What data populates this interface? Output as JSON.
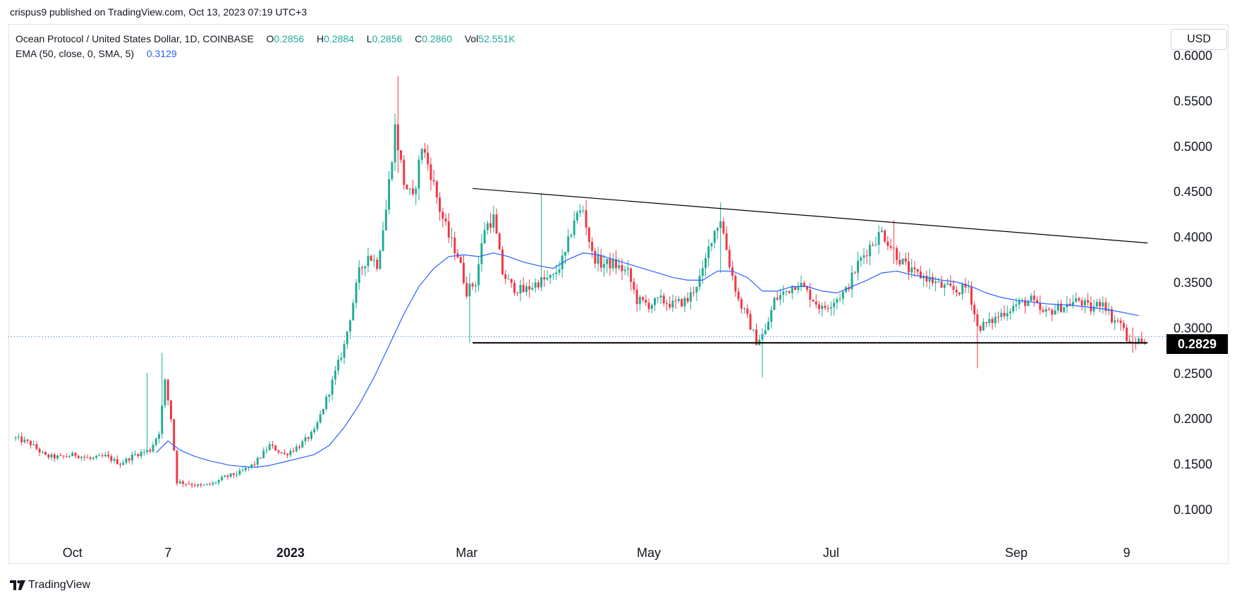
{
  "header": {
    "published": "crispus9 published on TradingView.com, Oct 13, 2023 07:19 UTC+3"
  },
  "legend": {
    "symbol": "Ocean Protocol / United States Dollar, 1D, COINBASE",
    "o_label": "O",
    "o_value": "0.2856",
    "h_label": "H",
    "h_value": "0.2884",
    "l_label": "L",
    "l_value": "0.2856",
    "c_label": "C",
    "c_value": "0.2860",
    "vol_label": "Vol",
    "vol_value": "52.551K",
    "ema_label": "EMA (50, close, 0, SMA, 5)",
    "ema_value": "0.3129"
  },
  "currency_button": "USD",
  "last_price_tag": "0.2829",
  "brand": "TradingView",
  "colors": {
    "up": "#22ab94",
    "down": "#f23645",
    "ema": "#2962ff",
    "trendline": "#000000",
    "price_line": "#2962ff"
  },
  "chart_data": {
    "type": "candlestick",
    "ylim": [
      0.05,
      0.61
    ],
    "y_ticks": [
      "0.6000",
      "0.5500",
      "0.5000",
      "0.4500",
      "0.4000",
      "0.3500",
      "0.3000",
      "0.2500",
      "0.2000",
      "0.1500",
      "0.1000"
    ],
    "x_ticks": [
      {
        "label": "Oct",
        "day": 19
      },
      {
        "label": "7",
        "day": 51
      },
      {
        "label": "2023",
        "day": 92,
        "bold": true
      },
      {
        "label": "Mar",
        "day": 151
      },
      {
        "label": "May",
        "day": 212
      },
      {
        "label": "Jul",
        "day": 273
      },
      {
        "label": "Sep",
        "day": 335
      },
      {
        "label": "9",
        "day": 372
      }
    ],
    "x_range_days": [
      -1,
      382
    ],
    "price_series": [
      [
        0,
        0.178
      ],
      [
        5,
        0.172
      ],
      [
        10,
        0.158
      ],
      [
        15,
        0.157
      ],
      [
        20,
        0.16
      ],
      [
        25,
        0.155
      ],
      [
        30,
        0.158
      ],
      [
        35,
        0.15
      ],
      [
        40,
        0.16
      ],
      [
        45,
        0.165
      ],
      [
        48,
        0.185
      ],
      [
        50,
        0.24
      ],
      [
        52,
        0.2
      ],
      [
        54,
        0.13
      ],
      [
        58,
        0.128
      ],
      [
        62,
        0.125
      ],
      [
        66,
        0.128
      ],
      [
        70,
        0.135
      ],
      [
        75,
        0.14
      ],
      [
        80,
        0.15
      ],
      [
        85,
        0.17
      ],
      [
        90,
        0.16
      ],
      [
        95,
        0.17
      ],
      [
        100,
        0.185
      ],
      [
        105,
        0.23
      ],
      [
        110,
        0.28
      ],
      [
        115,
        0.36
      ],
      [
        118,
        0.38
      ],
      [
        121,
        0.37
      ],
      [
        124,
        0.43
      ],
      [
        127,
        0.52
      ],
      [
        130,
        0.46
      ],
      [
        133,
        0.44
      ],
      [
        136,
        0.5
      ],
      [
        139,
        0.47
      ],
      [
        142,
        0.43
      ],
      [
        145,
        0.4
      ],
      [
        148,
        0.38
      ],
      [
        151,
        0.34
      ],
      [
        154,
        0.35
      ],
      [
        157,
        0.41
      ],
      [
        160,
        0.42
      ],
      [
        163,
        0.36
      ],
      [
        166,
        0.345
      ],
      [
        170,
        0.34
      ],
      [
        175,
        0.35
      ],
      [
        180,
        0.355
      ],
      [
        184,
        0.38
      ],
      [
        187,
        0.42
      ],
      [
        190,
        0.43
      ],
      [
        193,
        0.38
      ],
      [
        196,
        0.37
      ],
      [
        200,
        0.37
      ],
      [
        205,
        0.36
      ],
      [
        208,
        0.33
      ],
      [
        212,
        0.325
      ],
      [
        216,
        0.33
      ],
      [
        220,
        0.325
      ],
      [
        225,
        0.33
      ],
      [
        230,
        0.36
      ],
      [
        233,
        0.4
      ],
      [
        236,
        0.42
      ],
      [
        239,
        0.37
      ],
      [
        242,
        0.33
      ],
      [
        245,
        0.31
      ],
      [
        248,
        0.285
      ],
      [
        251,
        0.295
      ],
      [
        254,
        0.33
      ],
      [
        258,
        0.34
      ],
      [
        262,
        0.35
      ],
      [
        266,
        0.335
      ],
      [
        270,
        0.32
      ],
      [
        274,
        0.33
      ],
      [
        278,
        0.34
      ],
      [
        282,
        0.37
      ],
      [
        286,
        0.39
      ],
      [
        290,
        0.405
      ],
      [
        293,
        0.39
      ],
      [
        296,
        0.375
      ],
      [
        300,
        0.36
      ],
      [
        305,
        0.355
      ],
      [
        310,
        0.345
      ],
      [
        315,
        0.34
      ],
      [
        319,
        0.345
      ],
      [
        322,
        0.3
      ],
      [
        326,
        0.305
      ],
      [
        330,
        0.315
      ],
      [
        335,
        0.325
      ],
      [
        340,
        0.33
      ],
      [
        344,
        0.315
      ],
      [
        348,
        0.32
      ],
      [
        352,
        0.325
      ],
      [
        356,
        0.33
      ],
      [
        360,
        0.32
      ],
      [
        364,
        0.33
      ],
      [
        367,
        0.31
      ],
      [
        370,
        0.305
      ],
      [
        373,
        0.28
      ],
      [
        376,
        0.286
      ],
      [
        378,
        0.286
      ]
    ],
    "wick_spikes": [
      {
        "day": 44,
        "high": 0.25,
        "low": 0.16
      },
      {
        "day": 49,
        "high": 0.272,
        "low": 0.18
      },
      {
        "day": 128,
        "high": 0.577,
        "low": 0.47
      },
      {
        "day": 152,
        "high": 0.36,
        "low": 0.283
      },
      {
        "day": 176,
        "high": 0.448,
        "low": 0.34
      },
      {
        "day": 236,
        "high": 0.438,
        "low": 0.36
      },
      {
        "day": 250,
        "high": 0.29,
        "low": 0.245
      },
      {
        "day": 294,
        "high": 0.418,
        "low": 0.37
      },
      {
        "day": 322,
        "high": 0.32,
        "low": 0.255
      },
      {
        "day": 374,
        "high": 0.3,
        "low": 0.272
      }
    ],
    "ema_series": [
      [
        47,
        0.162
      ],
      [
        51,
        0.175
      ],
      [
        55,
        0.165
      ],
      [
        60,
        0.158
      ],
      [
        65,
        0.153
      ],
      [
        72,
        0.148
      ],
      [
        80,
        0.146
      ],
      [
        85,
        0.148
      ],
      [
        90,
        0.152
      ],
      [
        95,
        0.156
      ],
      [
        100,
        0.16
      ],
      [
        105,
        0.17
      ],
      [
        110,
        0.19
      ],
      [
        115,
        0.215
      ],
      [
        120,
        0.245
      ],
      [
        125,
        0.28
      ],
      [
        130,
        0.315
      ],
      [
        135,
        0.345
      ],
      [
        140,
        0.365
      ],
      [
        145,
        0.378
      ],
      [
        150,
        0.38
      ],
      [
        155,
        0.378
      ],
      [
        160,
        0.382
      ],
      [
        165,
        0.378
      ],
      [
        170,
        0.372
      ],
      [
        175,
        0.368
      ],
      [
        180,
        0.365
      ],
      [
        185,
        0.375
      ],
      [
        190,
        0.382
      ],
      [
        195,
        0.38
      ],
      [
        200,
        0.375
      ],
      [
        205,
        0.37
      ],
      [
        210,
        0.365
      ],
      [
        215,
        0.36
      ],
      [
        220,
        0.355
      ],
      [
        225,
        0.352
      ],
      [
        230,
        0.352
      ],
      [
        235,
        0.362
      ],
      [
        240,
        0.362
      ],
      [
        245,
        0.355
      ],
      [
        250,
        0.34
      ],
      [
        255,
        0.34
      ],
      [
        260,
        0.345
      ],
      [
        265,
        0.345
      ],
      [
        270,
        0.34
      ],
      [
        275,
        0.338
      ],
      [
        280,
        0.345
      ],
      [
        285,
        0.352
      ],
      [
        290,
        0.36
      ],
      [
        295,
        0.362
      ],
      [
        300,
        0.358
      ],
      [
        305,
        0.355
      ],
      [
        310,
        0.352
      ],
      [
        315,
        0.35
      ],
      [
        320,
        0.345
      ],
      [
        325,
        0.338
      ],
      [
        330,
        0.333
      ],
      [
        335,
        0.33
      ],
      [
        340,
        0.328
      ],
      [
        345,
        0.326
      ],
      [
        350,
        0.325
      ],
      [
        355,
        0.324
      ],
      [
        360,
        0.322
      ],
      [
        365,
        0.32
      ],
      [
        370,
        0.317
      ],
      [
        376,
        0.313
      ]
    ],
    "trendlines": [
      {
        "from": [
          153,
          0.453
        ],
        "to": [
          379,
          0.393
        ]
      },
      {
        "from": [
          153,
          0.283
        ],
        "to": [
          379,
          0.283
        ]
      }
    ],
    "last_price": 0.2829
  }
}
